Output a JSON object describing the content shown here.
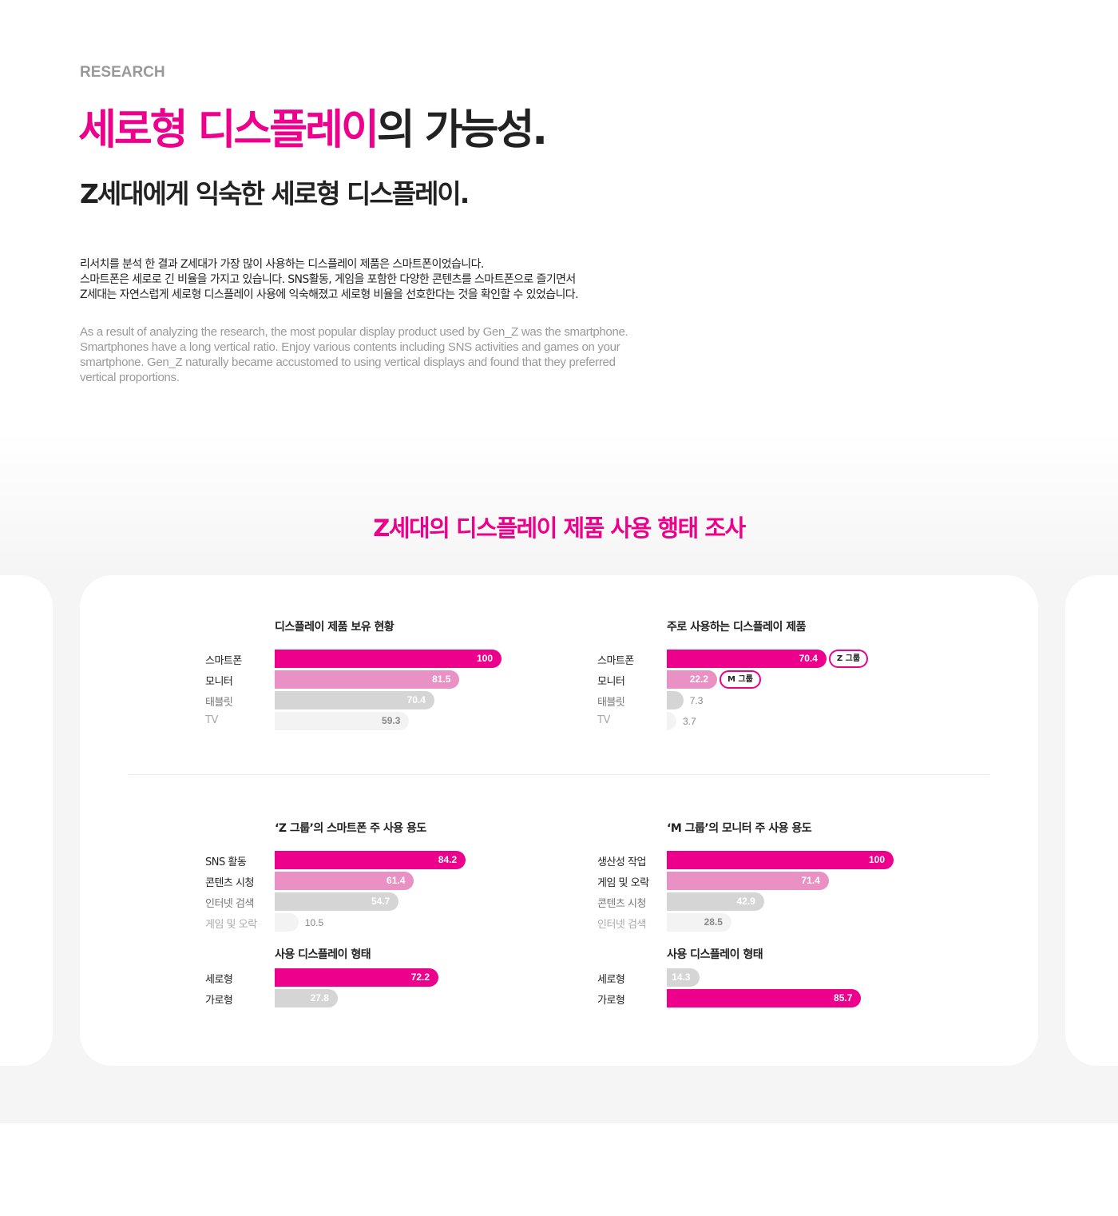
{
  "header": {
    "kicker": "RESEARCH",
    "title_highlight": "세로형 디스플레이",
    "title_rest": "의 가능성.",
    "subtitle": "Z세대에게 익숙한 세로형 디스플레이.",
    "body_kr": [
      "리서치를 분석 한 결과 Z세대가 가장 많이 사용하는 디스플레이 제품은 스마트폰이었습니다.",
      "스마트폰은 세로로 긴 비율을 가지고 있습니다. SNS활동, 게임을 포함한 다양한 콘텐츠를 스마트폰으로 즐기면서",
      "Z세대는 자연스럽게 세로형 디스플레이 사용에 익숙해졌고 세로형 비율을 선호한다는 것을 확인할 수 있었습니다."
    ],
    "body_en": "As a result of analyzing the research, the most popular display product used by Gen_Z was the smartphone. Smartphones have a long vertical ratio. Enjoy various contents including SNS activities and games on your smartphone. Gen_Z naturally became accustomed to using vertical displays and found that they preferred vertical proportions."
  },
  "section_title": "Z세대의 디스플레이 제품 사용 행태 조사",
  "colors": {
    "accent": "#ec008c",
    "secondary": "#e991c4",
    "tertiary": "#d5d5d5",
    "quaternary": "#f3f3f3"
  },
  "chart_data": [
    {
      "type": "bar",
      "orientation": "horizontal",
      "title": "디스플레이 제품 보유 현황",
      "xlim": [
        0,
        100
      ],
      "categories": [
        "스마트폰",
        "모니터",
        "태블릿",
        "TV"
      ],
      "values": [
        100,
        81.5,
        70.4,
        59.3
      ],
      "tiers": [
        "accent",
        "secondary",
        "tertiary",
        "quaternary"
      ],
      "badges": [
        null,
        null,
        null,
        null
      ]
    },
    {
      "type": "bar",
      "orientation": "horizontal",
      "title": "주로 사용하는 디스플레이 제품",
      "xlim": [
        0,
        100
      ],
      "categories": [
        "스마트폰",
        "모니터",
        "태블릿",
        "TV"
      ],
      "values": [
        70.4,
        22.2,
        7.3,
        3.7
      ],
      "tiers": [
        "accent",
        "secondary",
        "tertiary",
        "quaternary"
      ],
      "badges": [
        "Z 그룹",
        "M 그룹",
        null,
        null
      ]
    },
    {
      "type": "bar",
      "orientation": "horizontal",
      "title": "‘Z 그룹’의 스마트폰 주 사용 용도",
      "xlim": [
        0,
        100
      ],
      "categories": [
        "SNS 활동",
        "콘텐츠 시청",
        "인터넷 검색",
        "게임 및 오락"
      ],
      "values": [
        84.2,
        61.4,
        54.7,
        10.5
      ],
      "tiers": [
        "accent",
        "secondary",
        "tertiary",
        "quaternary"
      ],
      "badges": [
        null,
        null,
        null,
        null
      ]
    },
    {
      "type": "bar",
      "orientation": "horizontal",
      "title": "‘M 그룹’의 모니터 주 사용 용도",
      "xlim": [
        0,
        100
      ],
      "categories": [
        "생산성 작업",
        "게임 및 오락",
        "콘텐츠 시청",
        "인터넷 검색"
      ],
      "values": [
        100,
        71.4,
        42.9,
        28.5
      ],
      "tiers": [
        "accent",
        "secondary",
        "tertiary",
        "quaternary"
      ],
      "badges": [
        null,
        null,
        null,
        null
      ]
    },
    {
      "type": "bar",
      "orientation": "horizontal",
      "title": "사용 디스플레이 형태",
      "xlim": [
        0,
        100
      ],
      "categories": [
        "세로형",
        "가로형"
      ],
      "values": [
        72.2,
        27.8
      ],
      "tiers": [
        "accent",
        "tertiary"
      ],
      "badges": [
        null,
        null
      ]
    },
    {
      "type": "bar",
      "orientation": "horizontal",
      "title": "사용 디스플레이 형태",
      "xlim": [
        0,
        100
      ],
      "categories": [
        "세로형",
        "가로형"
      ],
      "values": [
        14.3,
        85.7
      ],
      "tiers": [
        "tertiary",
        "accent"
      ],
      "badges": [
        null,
        null
      ]
    }
  ]
}
